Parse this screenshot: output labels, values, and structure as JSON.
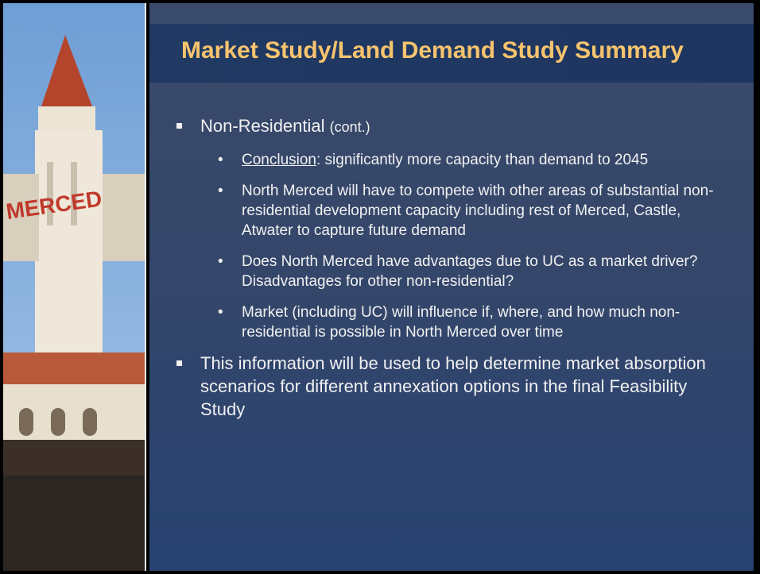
{
  "title": "Market Study/Land Demand Study Summary",
  "bullets": [
    {
      "text": "Non-Residential",
      "note": "(cont.)",
      "items": [
        {
          "lead": "Conclusion",
          "text": ": significantly more capacity than demand to 2045"
        },
        {
          "text": "North Merced will have to compete with other areas of substantial non-residential development capacity including rest of Merced, Castle, Atwater to capture future demand"
        },
        {
          "text": "Does North Merced have advantages due to UC as a market driver? Disadvantages for other non-residential?"
        },
        {
          "text": "Market (including UC) will influence if, where, and how much non-residential is possible in North Merced over time"
        }
      ]
    },
    {
      "text": "This information will be used to help determine market absorption scenarios for different annexation options in the final Feasibility Study"
    }
  ]
}
